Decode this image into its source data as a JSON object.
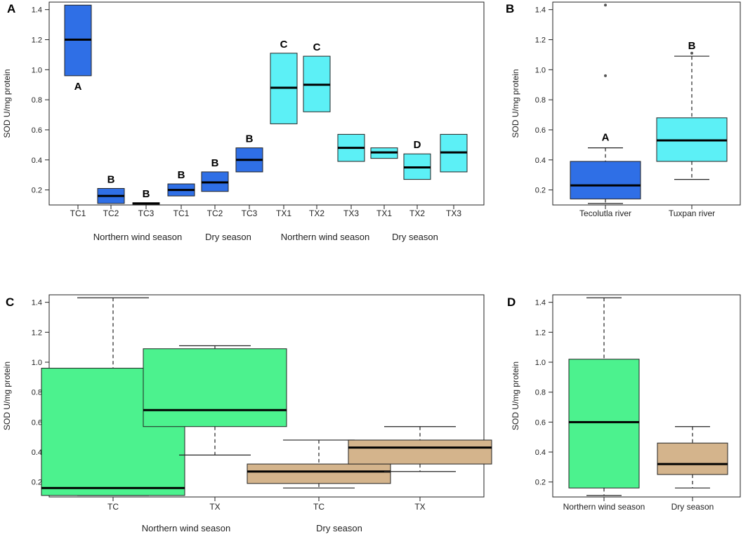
{
  "colors": {
    "dark_blue": "#2f6fe6",
    "cyan": "#5cf0f6",
    "green": "#4cf28e",
    "tan": "#d4b48c"
  },
  "chart_data": [
    {
      "panel_label": "A",
      "type": "box",
      "ylabel": "SOD U/mg protein",
      "ylim": [
        0.1,
        1.45
      ],
      "yticks": [
        "0.2",
        "0.4",
        "0.6",
        "0.8",
        "1.0",
        "1.2",
        "1.4"
      ],
      "categories": [
        "TC1",
        "TC2",
        "TC3",
        "TC1",
        "TC2",
        "TC3",
        "TX1",
        "TX2",
        "TX3",
        "TX1",
        "TX2",
        "TX3"
      ],
      "group_labels": [
        "Northern wind season",
        "Dry season",
        "Northern wind season",
        "Dry season"
      ],
      "boxes": [
        {
          "q1": 0.96,
          "median": 1.2,
          "q3": 1.43,
          "color": "dark_blue",
          "letter": "A",
          "letter_pos": "below"
        },
        {
          "q1": 0.11,
          "median": 0.16,
          "q3": 0.21,
          "color": "dark_blue",
          "letter": "B",
          "letter_pos": "above"
        },
        {
          "q1": 0.105,
          "median": 0.11,
          "q3": 0.115,
          "color": "dark_blue",
          "letter": "B",
          "letter_pos": "above"
        },
        {
          "q1": 0.16,
          "median": 0.2,
          "q3": 0.24,
          "color": "dark_blue",
          "letter": "B",
          "letter_pos": "above"
        },
        {
          "q1": 0.19,
          "median": 0.25,
          "q3": 0.32,
          "color": "dark_blue",
          "letter": "B",
          "letter_pos": "above"
        },
        {
          "q1": 0.32,
          "median": 0.4,
          "q3": 0.48,
          "color": "dark_blue",
          "letter": "B",
          "letter_pos": "above"
        },
        {
          "q1": 0.64,
          "median": 0.88,
          "q3": 1.11,
          "color": "cyan",
          "letter": "C",
          "letter_pos": "above"
        },
        {
          "q1": 0.72,
          "median": 0.9,
          "q3": 1.09,
          "color": "cyan",
          "letter": "C",
          "letter_pos": "above"
        },
        {
          "q1": 0.39,
          "median": 0.48,
          "q3": 0.57,
          "color": "cyan",
          "letter": "",
          "letter_pos": "above"
        },
        {
          "q1": 0.41,
          "median": 0.45,
          "q3": 0.48,
          "color": "cyan",
          "letter": "",
          "letter_pos": "above"
        },
        {
          "q1": 0.27,
          "median": 0.35,
          "q3": 0.44,
          "color": "cyan",
          "letter": "D",
          "letter_pos": "above"
        },
        {
          "q1": 0.32,
          "median": 0.45,
          "q3": 0.57,
          "color": "cyan",
          "letter": "",
          "letter_pos": "above"
        }
      ]
    },
    {
      "panel_label": "B",
      "type": "box",
      "ylabel": "SOD U/mg protein",
      "ylim": [
        0.1,
        1.45
      ],
      "yticks": [
        "0.2",
        "0.4",
        "0.6",
        "0.8",
        "1.0",
        "1.2",
        "1.4"
      ],
      "categories": [
        "Tecolutla river",
        "Tuxpan river"
      ],
      "boxes": [
        {
          "whisker_low": 0.11,
          "q1": 0.14,
          "median": 0.23,
          "q3": 0.39,
          "whisker_high": 0.48,
          "outliers": [
            0.96,
            1.43
          ],
          "color": "dark_blue",
          "letter": "A"
        },
        {
          "whisker_low": 0.27,
          "q1": 0.39,
          "median": 0.53,
          "q3": 0.68,
          "whisker_high": 1.09,
          "outliers": [
            1.11
          ],
          "color": "cyan",
          "letter": "B"
        }
      ]
    },
    {
      "panel_label": "C",
      "type": "box",
      "ylabel": "SOD U/mg protein",
      "ylim": [
        0.1,
        1.45
      ],
      "yticks": [
        "0.2",
        "0.4",
        "0.6",
        "0.8",
        "1.0",
        "1.2",
        "1.4"
      ],
      "categories": [
        "TC",
        "TX",
        "TC",
        "TX"
      ],
      "group_labels": [
        "Northern wind season",
        "Dry season"
      ],
      "boxes": [
        {
          "whisker_low": 0.11,
          "q1": 0.11,
          "median": 0.16,
          "q3": 0.96,
          "whisker_high": 1.43,
          "color": "green"
        },
        {
          "whisker_low": 0.38,
          "q1": 0.57,
          "median": 0.68,
          "q3": 1.09,
          "whisker_high": 1.11,
          "color": "green"
        },
        {
          "whisker_low": 0.16,
          "q1": 0.19,
          "median": 0.27,
          "q3": 0.32,
          "whisker_high": 0.48,
          "color": "tan"
        },
        {
          "whisker_low": 0.27,
          "q1": 0.32,
          "median": 0.43,
          "q3": 0.48,
          "whisker_high": 0.57,
          "color": "tan"
        }
      ]
    },
    {
      "panel_label": "D",
      "type": "box",
      "ylabel": "SOD U/mg protein",
      "ylim": [
        0.1,
        1.45
      ],
      "yticks": [
        "0.2",
        "0.4",
        "0.6",
        "0.8",
        "1.0",
        "1.2",
        "1.4"
      ],
      "categories": [
        "Northern wind season",
        "Dry season"
      ],
      "boxes": [
        {
          "whisker_low": 0.11,
          "q1": 0.16,
          "median": 0.6,
          "q3": 1.02,
          "whisker_high": 1.43,
          "color": "green"
        },
        {
          "whisker_low": 0.16,
          "q1": 0.25,
          "median": 0.32,
          "q3": 0.46,
          "whisker_high": 0.57,
          "color": "tan"
        }
      ]
    }
  ]
}
